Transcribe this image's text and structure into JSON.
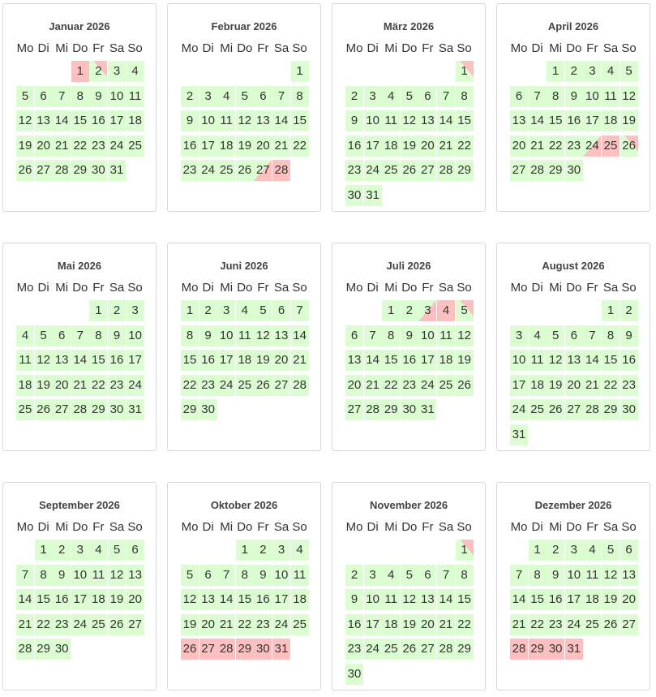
{
  "weekdays": [
    "Mo",
    "Di",
    "Mi",
    "Do",
    "Fr",
    "Sa",
    "So"
  ],
  "months": [
    {
      "title": "Januar 2026",
      "weeks": [
        [
          null,
          null,
          null,
          1,
          2,
          3,
          4
        ],
        [
          5,
          6,
          7,
          8,
          9,
          10,
          11
        ],
        [
          12,
          13,
          14,
          15,
          16,
          17,
          18
        ],
        [
          19,
          20,
          21,
          22,
          23,
          24,
          25
        ],
        [
          26,
          27,
          28,
          29,
          30,
          31
        ]
      ],
      "booked": [
        1
      ],
      "arrival": [],
      "departure": [
        2
      ]
    },
    {
      "title": "Februar 2026",
      "weeks": [
        [
          null,
          null,
          null,
          null,
          null,
          null,
          1
        ],
        [
          2,
          3,
          4,
          5,
          6,
          7,
          8
        ],
        [
          9,
          10,
          11,
          12,
          13,
          14,
          15
        ],
        [
          16,
          17,
          18,
          19,
          20,
          21,
          22
        ],
        [
          23,
          24,
          25,
          26,
          27,
          28
        ]
      ],
      "booked": [
        28
      ],
      "arrival": [
        27
      ],
      "departure": []
    },
    {
      "title": "März 2026",
      "weeks": [
        [
          null,
          null,
          null,
          null,
          null,
          null,
          1
        ],
        [
          2,
          3,
          4,
          5,
          6,
          7,
          8
        ],
        [
          9,
          10,
          11,
          12,
          13,
          14,
          15
        ],
        [
          16,
          17,
          18,
          19,
          20,
          21,
          22
        ],
        [
          23,
          24,
          25,
          26,
          27,
          28,
          29
        ],
        [
          30,
          31
        ]
      ],
      "booked": [],
      "arrival": [],
      "departure": [
        1
      ]
    },
    {
      "title": "April 2026",
      "weeks": [
        [
          null,
          null,
          1,
          2,
          3,
          4,
          5
        ],
        [
          6,
          7,
          8,
          9,
          10,
          11,
          12
        ],
        [
          13,
          14,
          15,
          16,
          17,
          18,
          19
        ],
        [
          20,
          21,
          22,
          23,
          24,
          25,
          26
        ],
        [
          27,
          28,
          29,
          30
        ]
      ],
      "booked": [
        25
      ],
      "arrival": [
        24
      ],
      "departure": [
        26
      ]
    },
    {
      "title": "Mai 2026",
      "weeks": [
        [
          null,
          null,
          null,
          null,
          1,
          2,
          3
        ],
        [
          4,
          5,
          6,
          7,
          8,
          9,
          10
        ],
        [
          11,
          12,
          13,
          14,
          15,
          16,
          17
        ],
        [
          18,
          19,
          20,
          21,
          22,
          23,
          24
        ],
        [
          25,
          26,
          27,
          28,
          29,
          30,
          31
        ]
      ],
      "booked": [],
      "arrival": [],
      "departure": []
    },
    {
      "title": "Juni 2026",
      "weeks": [
        [
          1,
          2,
          3,
          4,
          5,
          6,
          7
        ],
        [
          8,
          9,
          10,
          11,
          12,
          13,
          14
        ],
        [
          15,
          16,
          17,
          18,
          19,
          20,
          21
        ],
        [
          22,
          23,
          24,
          25,
          26,
          27,
          28
        ],
        [
          29,
          30
        ]
      ],
      "booked": [],
      "arrival": [],
      "departure": []
    },
    {
      "title": "Juli 2026",
      "weeks": [
        [
          null,
          null,
          1,
          2,
          3,
          4,
          5
        ],
        [
          6,
          7,
          8,
          9,
          10,
          11,
          12
        ],
        [
          13,
          14,
          15,
          16,
          17,
          18,
          19
        ],
        [
          20,
          21,
          22,
          23,
          24,
          25,
          26
        ],
        [
          27,
          28,
          29,
          30,
          31
        ]
      ],
      "booked": [
        4
      ],
      "arrival": [
        3
      ],
      "departure": [
        5
      ]
    },
    {
      "title": "August 2026",
      "weeks": [
        [
          null,
          null,
          null,
          null,
          null,
          1,
          2
        ],
        [
          3,
          4,
          5,
          6,
          7,
          8,
          9
        ],
        [
          10,
          11,
          12,
          13,
          14,
          15,
          16
        ],
        [
          17,
          18,
          19,
          20,
          21,
          22,
          23
        ],
        [
          24,
          25,
          26,
          27,
          28,
          29,
          30
        ],
        [
          31
        ]
      ],
      "booked": [],
      "arrival": [],
      "departure": []
    },
    {
      "title": "September 2026",
      "weeks": [
        [
          null,
          1,
          2,
          3,
          4,
          5,
          6
        ],
        [
          7,
          8,
          9,
          10,
          11,
          12,
          13
        ],
        [
          14,
          15,
          16,
          17,
          18,
          19,
          20
        ],
        [
          21,
          22,
          23,
          24,
          25,
          26,
          27
        ],
        [
          28,
          29,
          30
        ]
      ],
      "booked": [],
      "arrival": [],
      "departure": []
    },
    {
      "title": "Oktober 2026",
      "weeks": [
        [
          null,
          null,
          null,
          1,
          2,
          3,
          4
        ],
        [
          5,
          6,
          7,
          8,
          9,
          10,
          11
        ],
        [
          12,
          13,
          14,
          15,
          16,
          17,
          18
        ],
        [
          19,
          20,
          21,
          22,
          23,
          24,
          25
        ],
        [
          26,
          27,
          28,
          29,
          30,
          31
        ]
      ],
      "booked": [
        26,
        27,
        28,
        29,
        30,
        31
      ],
      "arrival": [],
      "departure": []
    },
    {
      "title": "November 2026",
      "weeks": [
        [
          null,
          null,
          null,
          null,
          null,
          null,
          1
        ],
        [
          2,
          3,
          4,
          5,
          6,
          7,
          8
        ],
        [
          9,
          10,
          11,
          12,
          13,
          14,
          15
        ],
        [
          16,
          17,
          18,
          19,
          20,
          21,
          22
        ],
        [
          23,
          24,
          25,
          26,
          27,
          28,
          29
        ],
        [
          30
        ]
      ],
      "booked": [],
      "arrival": [],
      "departure": [
        1
      ]
    },
    {
      "title": "Dezember 2026",
      "weeks": [
        [
          null,
          1,
          2,
          3,
          4,
          5,
          6
        ],
        [
          7,
          8,
          9,
          10,
          11,
          12,
          13
        ],
        [
          14,
          15,
          16,
          17,
          18,
          19,
          20
        ],
        [
          21,
          22,
          23,
          24,
          25,
          26,
          27
        ],
        [
          28,
          29,
          30,
          31
        ]
      ],
      "booked": [
        28,
        29,
        30,
        31
      ],
      "arrival": [],
      "departure": []
    }
  ]
}
